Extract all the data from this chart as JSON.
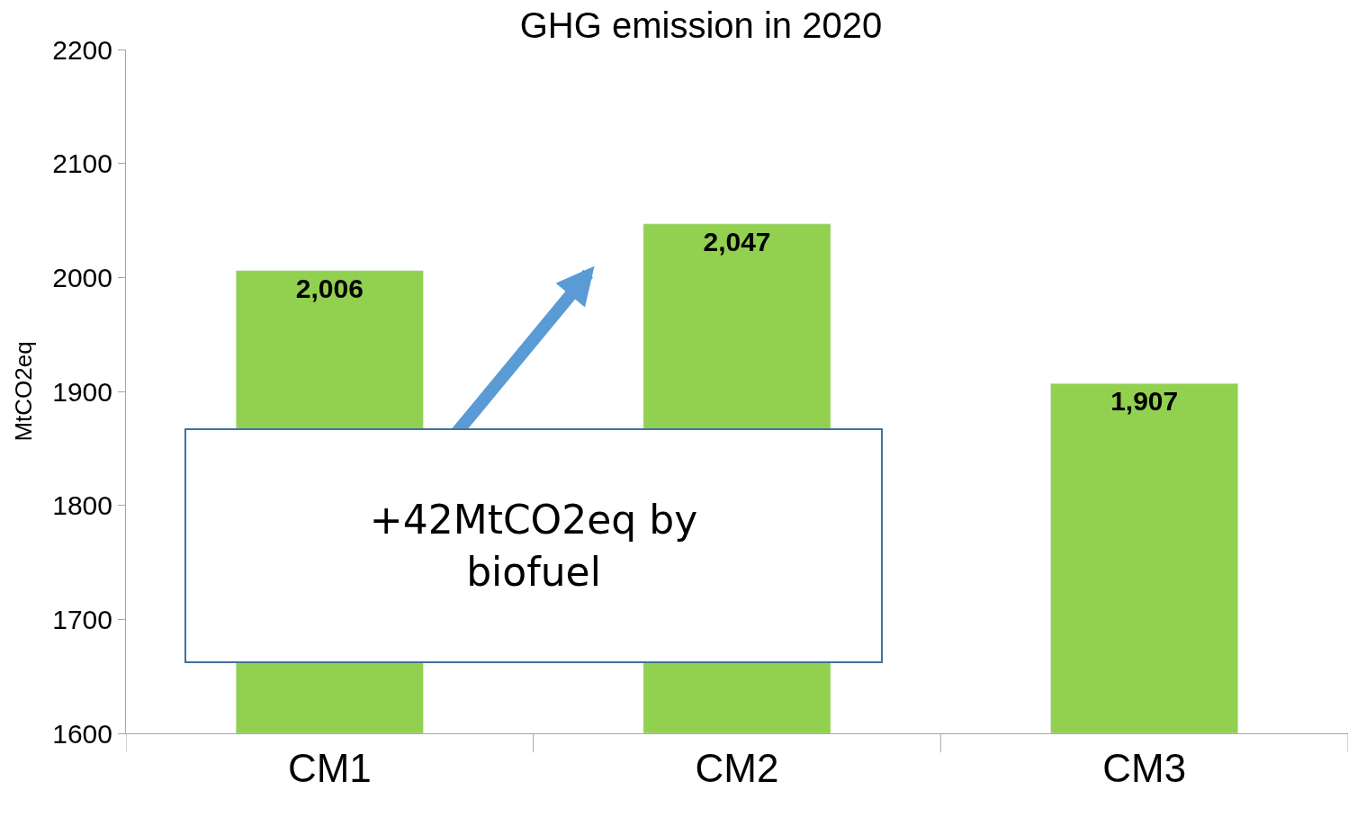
{
  "chart_data": {
    "type": "bar",
    "title": "GHG emission in 2020",
    "ylabel": "MtCO2eq",
    "categories": [
      "CM1",
      "CM2",
      "CM3"
    ],
    "values": [
      2006,
      2047,
      1907
    ],
    "color": "#92d050",
    "ylim": [
      1600,
      2200
    ],
    "yticks": [
      1600,
      1700,
      1800,
      1900,
      2000,
      2100,
      2200
    ],
    "legend": false,
    "value_labels": [
      "2,006",
      "2,047",
      "1,907"
    ],
    "annotations": [
      "+42MtCO2eq by biofuel"
    ]
  }
}
